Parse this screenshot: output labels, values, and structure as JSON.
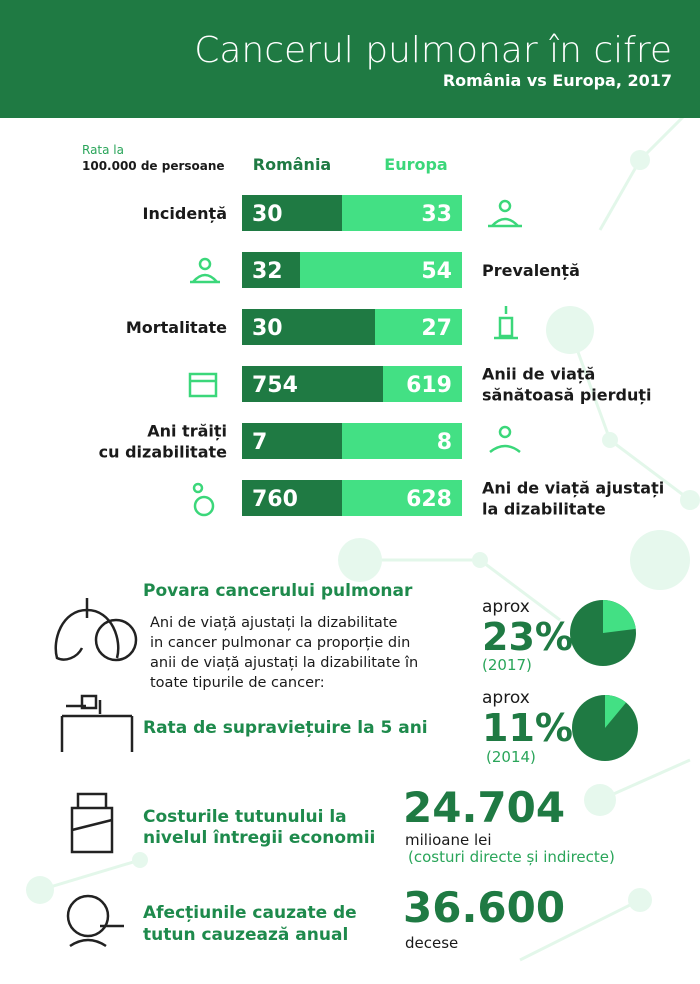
{
  "header": {
    "title": "Cancerul pulmonar în cifre",
    "subtitle": "România vs Europa, 2017"
  },
  "table": {
    "rate_label": [
      "Rata la",
      "100.000 de persoane"
    ],
    "columns": [
      "România",
      "Europa"
    ],
    "rows": [
      {
        "label": [
          "Incidență"
        ],
        "romania": 30,
        "europa": 33
      },
      {
        "label": [
          "Prevalență"
        ],
        "romania": 32,
        "europa": 54
      },
      {
        "label": [
          "Mortalitate"
        ],
        "romania": 30,
        "europa": 27
      },
      {
        "label": [
          "Anii de viață",
          "sănătoasă pierduți"
        ],
        "romania": 754,
        "europa": 619
      },
      {
        "label": [
          "Ani trăiți",
          "cu dizabilitate"
        ],
        "romania": 7,
        "europa": 8
      },
      {
        "label": [
          "Ani de viață ajustați",
          "la dizabilitate"
        ],
        "romania": 760,
        "europa": 628
      }
    ]
  },
  "burden": {
    "title": "Povara cancerului pulmonar",
    "text": [
      "Ani de viață ajustați la dizabilitate",
      "in cancer pulmonar ca proporție din",
      "anii de viață ajustați la dizabilitate în",
      "toate tipurile de cancer:"
    ],
    "prefix": "aprox",
    "percent": {
      "value": 23,
      "label": "23%"
    },
    "year": "(2017)"
  },
  "survival": {
    "title": "Rata de supraviețuire la 5 ani",
    "prefix": "aprox",
    "percent": {
      "value": 11,
      "label": "11%"
    },
    "year": "(2014)"
  },
  "costs": {
    "title": [
      "Costurile tutunului la",
      "nivelul întregii economii"
    ],
    "value": "24.704",
    "unit": "milioane lei",
    "note": "(costuri directe și indirecte)"
  },
  "deaths": {
    "title": [
      "Afecțiunile cauzate de",
      "tutun cauzează anual"
    ],
    "value": "36.600",
    "unit": "decese"
  }
}
